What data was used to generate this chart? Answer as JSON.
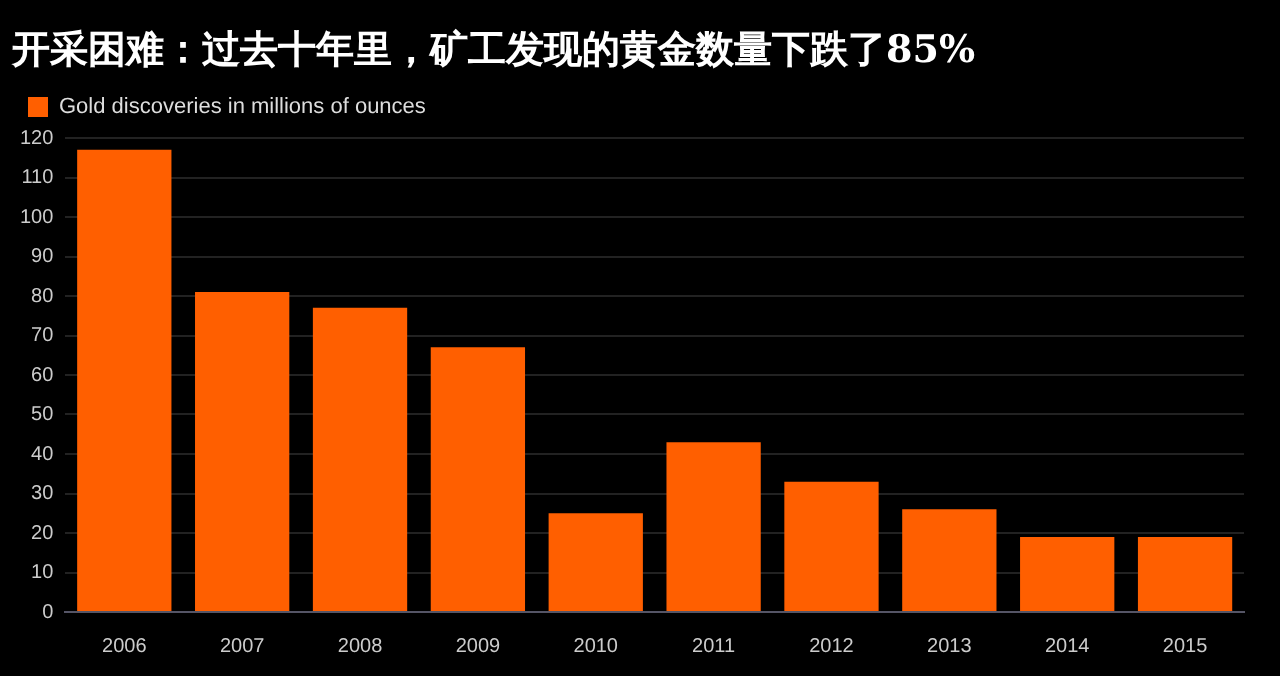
{
  "chart_data": {
    "type": "bar",
    "title": "开采困难：过去十年里，矿工发现的黄金数量下跌了85%",
    "categories": [
      "2006",
      "2007",
      "2008",
      "2009",
      "2010",
      "2011",
      "2012",
      "2013",
      "2014",
      "2015"
    ],
    "series": [
      {
        "name": "Gold discoveries in millions of ounces",
        "color": "#ff5f00",
        "values": [
          117,
          81,
          77,
          67,
          25,
          43,
          33,
          26,
          19,
          19
        ]
      }
    ],
    "ylim": [
      0,
      120
    ],
    "yticks": [
      0,
      10,
      20,
      30,
      40,
      50,
      60,
      70,
      80,
      90,
      100,
      110,
      120
    ],
    "grid": "y",
    "legend": "top left"
  }
}
